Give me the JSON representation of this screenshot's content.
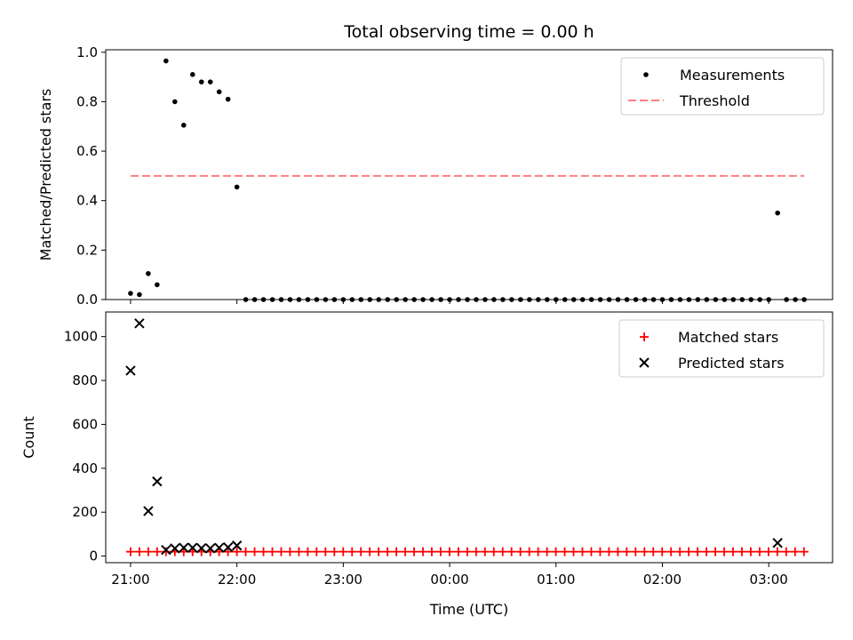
{
  "title": "Total observing time = 0.00 h",
  "colors": {
    "measurement": "#000000",
    "threshold": "#ff7f7f",
    "matched": "#ff0000",
    "predicted": "#000000"
  },
  "chart_data": [
    {
      "type": "scatter",
      "ylabel": "Matched/Predicted stars",
      "xlim": [
        -0.2333,
        6.6
      ],
      "ylim": [
        0,
        1.01
      ],
      "yticks": [
        {
          "v": 0.0,
          "label": "0.0"
        },
        {
          "v": 0.2,
          "label": "0.2"
        },
        {
          "v": 0.4,
          "label": "0.4"
        },
        {
          "v": 0.6,
          "label": "0.6"
        },
        {
          "v": 0.8,
          "label": "0.8"
        },
        {
          "v": 1.0,
          "label": "1.0"
        }
      ],
      "legend": {
        "position": "top-right",
        "items": [
          {
            "name": "Measurements",
            "marker": "dot"
          },
          {
            "name": "Threshold",
            "marker": "dashed-line"
          }
        ]
      },
      "threshold": {
        "name": "Threshold",
        "x": [
          0,
          6.333
        ],
        "y": 0.5
      },
      "series": [
        {
          "name": "Measurements",
          "x": [
            0.0,
            0.0833,
            0.1667,
            0.25,
            0.3333,
            0.4167,
            0.5,
            0.5833,
            0.6667,
            0.75,
            0.8333,
            0.9167,
            1.0,
            1.0833,
            1.1667,
            1.25,
            1.3333,
            1.4167,
            1.5,
            1.5833,
            1.6667,
            1.75,
            1.8333,
            1.9167,
            2.0,
            2.0833,
            2.1667,
            2.25,
            2.3333,
            2.4167,
            2.5,
            2.5833,
            2.6667,
            2.75,
            2.8333,
            2.9167,
            3.0,
            3.0833,
            3.1667,
            3.25,
            3.3333,
            3.4167,
            3.5,
            3.5833,
            3.6667,
            3.75,
            3.8333,
            3.9167,
            4.0,
            4.0833,
            4.1667,
            4.25,
            4.3333,
            4.4167,
            4.5,
            4.5833,
            4.6667,
            4.75,
            4.8333,
            4.9167,
            5.0,
            5.0833,
            5.1667,
            5.25,
            5.3333,
            5.4167,
            5.5,
            5.5833,
            5.6667,
            5.75,
            5.8333,
            5.9167,
            6.0,
            6.0833,
            6.1667,
            6.25,
            6.3333
          ],
          "y": [
            0.025,
            0.02,
            0.105,
            0.06,
            0.965,
            0.8,
            0.705,
            0.91,
            0.88,
            0.88,
            0.84,
            0.81,
            0.455,
            0.0,
            0.0,
            0.0,
            0.0,
            0.0,
            0.0,
            0.0,
            0.0,
            0.0,
            0.0,
            0.0,
            0.0,
            0.0,
            0.0,
            0.0,
            0.0,
            0.0,
            0.0,
            0.0,
            0.0,
            0.0,
            0.0,
            0.0,
            0.0,
            0.0,
            0.0,
            0.0,
            0.0,
            0.0,
            0.0,
            0.0,
            0.0,
            0.0,
            0.0,
            0.0,
            0.0,
            0.0,
            0.0,
            0.0,
            0.0,
            0.0,
            0.0,
            0.0,
            0.0,
            0.0,
            0.0,
            0.0,
            0.0,
            0.0,
            0.0,
            0.0,
            0.0,
            0.0,
            0.0,
            0.0,
            0.0,
            0.0,
            0.0,
            0.0,
            0.0,
            0.35,
            0.0,
            0.0,
            0.0
          ]
        }
      ]
    },
    {
      "type": "scatter",
      "ylabel": "Count",
      "xlabel": "Time (UTC)",
      "xlim": [
        -0.2333,
        6.6
      ],
      "ylim": [
        -30,
        1112
      ],
      "yticks": [
        {
          "v": 0,
          "label": "0"
        },
        {
          "v": 200,
          "label": "200"
        },
        {
          "v": 400,
          "label": "400"
        },
        {
          "v": 600,
          "label": "600"
        },
        {
          "v": 800,
          "label": "800"
        },
        {
          "v": 1000,
          "label": "1000"
        }
      ],
      "xticks": [
        {
          "v": 0,
          "label": "21:00"
        },
        {
          "v": 1,
          "label": "22:00"
        },
        {
          "v": 2,
          "label": "23:00"
        },
        {
          "v": 3,
          "label": "00:00"
        },
        {
          "v": 4,
          "label": "01:00"
        },
        {
          "v": 5,
          "label": "02:00"
        },
        {
          "v": 6,
          "label": "03:00"
        }
      ],
      "legend": {
        "position": "top-right",
        "items": [
          {
            "name": "Matched stars",
            "marker": "plus"
          },
          {
            "name": "Predicted stars",
            "marker": "x"
          }
        ]
      },
      "series": [
        {
          "name": "Matched stars",
          "x_range": [
            0.0,
            6.3333
          ],
          "x_step": 0.0833,
          "y_value": 20
        },
        {
          "name": "Predicted stars",
          "x": [
            0.0,
            0.0833,
            0.1667,
            0.25,
            0.3333,
            0.4167,
            0.5,
            0.5833,
            0.6667,
            0.75,
            0.8333,
            0.9167,
            1.0,
            6.0833
          ],
          "y": [
            845,
            1060,
            205,
            340,
            28,
            35,
            38,
            38,
            36,
            35,
            38,
            40,
            48,
            60
          ]
        }
      ]
    }
  ]
}
